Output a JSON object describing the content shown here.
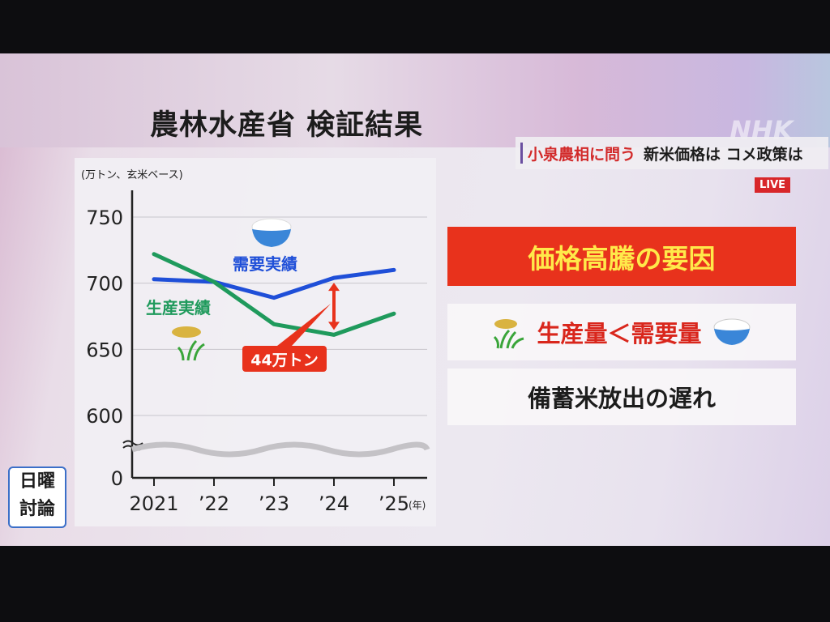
{
  "header": {
    "title": "農林水産省 検証結果",
    "headline_red": "小泉農相に問う",
    "headline_black": "新米価格は コメ政策は",
    "channel_logo": "NHK",
    "live_badge": "LIVE",
    "program_logo": [
      "日曜",
      "討論"
    ]
  },
  "chart_data": {
    "type": "line",
    "unit_label": "(万トン、玄米ベース)",
    "x": [
      "2021",
      "’22",
      "’23",
      "’24",
      "’25"
    ],
    "x_unit": "(年)",
    "yticks": [
      "750",
      "700",
      "650",
      "600",
      "0"
    ],
    "ylim": [
      600,
      750
    ],
    "axis_break": true,
    "grid": true,
    "series": [
      {
        "name": "需要実績",
        "color": "#1f4fd8",
        "values": [
          703,
          701,
          689,
          704,
          710
        ]
      },
      {
        "name": "生産実績",
        "color": "#1f9a5c",
        "values": [
          722,
          701,
          669,
          661,
          677
        ]
      }
    ],
    "annotation": {
      "label": "44万トン",
      "year": "’24",
      "color": "#e8321c"
    }
  },
  "panels": {
    "cause_title": "価格高騰の要因",
    "cause_1": "生産量＜需要量",
    "cause_2": "備蓄米放出の遅れ"
  }
}
